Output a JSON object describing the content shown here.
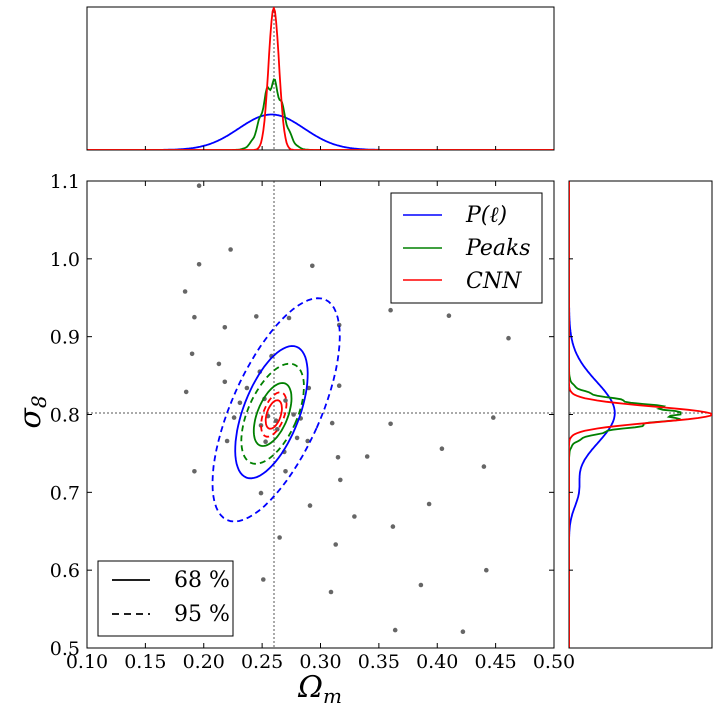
{
  "chart_data": {
    "type": "scatter",
    "title": "",
    "xlabel": "Ω_m",
    "ylabel": "σ_8",
    "xlim": [
      0.1,
      0.5
    ],
    "ylim": [
      0.5,
      1.1
    ],
    "x_ticks": [
      "0.10",
      "0.15",
      "0.20",
      "0.25",
      "0.30",
      "0.35",
      "0.40",
      "0.45",
      "0.50"
    ],
    "y_ticks": [
      "0.5",
      "0.6",
      "0.7",
      "0.8",
      "0.9",
      "1.0",
      "1.1"
    ],
    "fiducial": {
      "x": 0.26,
      "y": 0.8
    },
    "colors": {
      "P": "#0000ff",
      "Peaks": "#008000",
      "CNN": "#ff0000",
      "points": "#666666",
      "guide": "#555555"
    },
    "legend_series": [
      {
        "name": "P(ℓ)",
        "color": "#0000ff"
      },
      {
        "name": "Peaks",
        "color": "#008000"
      },
      {
        "name": "CNN",
        "color": "#ff0000"
      }
    ],
    "legend_levels": [
      {
        "label": "68 %",
        "style": "solid"
      },
      {
        "label": "95 %",
        "style": "dashed"
      }
    ],
    "points": [
      [
        0.196,
        1.094
      ],
      [
        0.223,
        1.012
      ],
      [
        0.196,
        0.993
      ],
      [
        0.293,
        0.991
      ],
      [
        0.184,
        0.958
      ],
      [
        0.192,
        0.925
      ],
      [
        0.245,
        0.926
      ],
      [
        0.273,
        0.924
      ],
      [
        0.218,
        0.912
      ],
      [
        0.316,
        0.915
      ],
      [
        0.36,
        0.934
      ],
      [
        0.41,
        0.927
      ],
      [
        0.461,
        0.898
      ],
      [
        0.19,
        0.878
      ],
      [
        0.258,
        0.875
      ],
      [
        0.213,
        0.865
      ],
      [
        0.248,
        0.855
      ],
      [
        0.185,
        0.829
      ],
      [
        0.218,
        0.842
      ],
      [
        0.237,
        0.834
      ],
      [
        0.29,
        0.834
      ],
      [
        0.316,
        0.837
      ],
      [
        0.231,
        0.815
      ],
      [
        0.252,
        0.82
      ],
      [
        0.27,
        0.818
      ],
      [
        0.255,
        0.798
      ],
      [
        0.262,
        0.792
      ],
      [
        0.277,
        0.8
      ],
      [
        0.283,
        0.795
      ],
      [
        0.226,
        0.796
      ],
      [
        0.249,
        0.786
      ],
      [
        0.263,
        0.781
      ],
      [
        0.31,
        0.789
      ],
      [
        0.36,
        0.788
      ],
      [
        0.448,
        0.796
      ],
      [
        0.22,
        0.766
      ],
      [
        0.253,
        0.765
      ],
      [
        0.28,
        0.77
      ],
      [
        0.289,
        0.766
      ],
      [
        0.269,
        0.752
      ],
      [
        0.315,
        0.745
      ],
      [
        0.34,
        0.746
      ],
      [
        0.404,
        0.756
      ],
      [
        0.192,
        0.727
      ],
      [
        0.27,
        0.727
      ],
      [
        0.317,
        0.716
      ],
      [
        0.44,
        0.733
      ],
      [
        0.249,
        0.699
      ],
      [
        0.291,
        0.683
      ],
      [
        0.329,
        0.669
      ],
      [
        0.393,
        0.685
      ],
      [
        0.265,
        0.642
      ],
      [
        0.362,
        0.656
      ],
      [
        0.313,
        0.633
      ],
      [
        0.442,
        0.6
      ],
      [
        0.251,
        0.588
      ],
      [
        0.386,
        0.581
      ],
      [
        0.309,
        0.572
      ],
      [
        0.364,
        0.523
      ],
      [
        0.422,
        0.521
      ]
    ],
    "contours": [
      {
        "series": "P(ℓ)",
        "level": "68 %",
        "center": [
          0.258,
          0.803
        ],
        "semi_axis": [
          0.024,
          0.09
        ],
        "rotation_deg": 21
      },
      {
        "series": "P(ℓ)",
        "level": "95 %",
        "center": [
          0.262,
          0.806
        ],
        "semi_axis": [
          0.038,
          0.155
        ],
        "rotation_deg": 24
      },
      {
        "series": "Peaks",
        "level": "68 %",
        "center": [
          0.259,
          0.8
        ],
        "semi_axis": [
          0.013,
          0.043
        ],
        "rotation_deg": 22
      },
      {
        "series": "Peaks",
        "level": "95 %",
        "center": [
          0.259,
          0.801
        ],
        "semi_axis": [
          0.021,
          0.069
        ],
        "rotation_deg": 24
      },
      {
        "series": "CNN",
        "level": "68 %",
        "center": [
          0.26,
          0.8
        ],
        "semi_axis": [
          0.006,
          0.019
        ],
        "rotation_deg": 18
      },
      {
        "series": "CNN",
        "level": "95 %",
        "center": [
          0.26,
          0.8
        ],
        "semi_axis": [
          0.009,
          0.03
        ],
        "rotation_deg": 20
      }
    ],
    "marginals": {
      "omega_m": [
        {
          "series": "P(ℓ)",
          "center": 0.258,
          "width": 0.028,
          "peak": 0.25
        },
        {
          "series": "Peaks",
          "center": 0.259,
          "width": 0.009,
          "peak": 0.47
        },
        {
          "series": "CNN",
          "center": 0.26,
          "width": 0.0045,
          "peak": 1.0
        }
      ],
      "sigma_8": [
        {
          "series": "P(ℓ)",
          "center": 0.802,
          "width": 0.04,
          "peak": 0.32
        },
        {
          "series": "Peaks",
          "center": 0.8,
          "width": 0.015,
          "peak": 0.78
        },
        {
          "series": "CNN",
          "center": 0.8,
          "width": 0.01,
          "peak": 1.0
        }
      ]
    }
  }
}
